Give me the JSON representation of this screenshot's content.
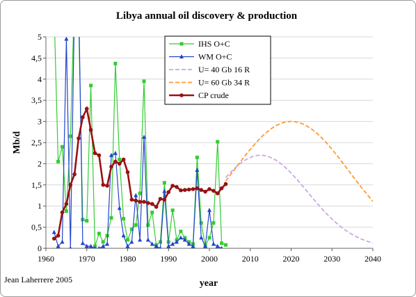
{
  "chart_data": {
    "type": "line",
    "title": "Libya annual oil discovery & production",
    "xlabel": "year",
    "ylabel": "Mb/d",
    "xlim": [
      1960,
      2040
    ],
    "ylim": [
      0,
      5
    ],
    "xticks": [
      1960,
      1970,
      1980,
      1990,
      2000,
      2010,
      2020,
      2030,
      2040
    ],
    "yticks": [
      "0",
      "0,5",
      "1",
      "1,5",
      "2",
      "2,5",
      "3",
      "3,5",
      "4",
      "4,5",
      "5"
    ],
    "yticks_values": [
      0,
      0.5,
      1,
      1.5,
      2,
      2.5,
      3,
      3.5,
      4,
      4.5,
      5
    ],
    "grid": "horizontal",
    "legend_position": "top-center",
    "annotation": "Jean Laherrere 2005",
    "series": [
      {
        "name": "IHS  O+C",
        "color": "#33cc33",
        "marker": "square",
        "style": "solid",
        "points": [
          [
            1962,
            5.6
          ],
          [
            1963,
            2.05
          ],
          [
            1964,
            2.4
          ],
          [
            1965,
            0.88
          ],
          [
            1966,
            2.65
          ],
          [
            1967,
            6.0
          ],
          [
            1968,
            5.5
          ],
          [
            1969,
            0.68
          ],
          [
            1970,
            0.65
          ],
          [
            1971,
            3.85
          ],
          [
            1972,
            0.05
          ],
          [
            1973,
            0.35
          ],
          [
            1974,
            0.15
          ],
          [
            1975,
            0.3
          ],
          [
            1976,
            0.72
          ],
          [
            1977,
            4.37
          ],
          [
            1978,
            2.1
          ],
          [
            1979,
            0.7
          ],
          [
            1980,
            0.2
          ],
          [
            1981,
            0.45
          ],
          [
            1982,
            0.55
          ],
          [
            1983,
            1.3
          ],
          [
            1984,
            3.95
          ],
          [
            1985,
            0.55
          ],
          [
            1986,
            0.85
          ],
          [
            1987,
            0.08
          ],
          [
            1988,
            0.15
          ],
          [
            1989,
            1.55
          ],
          [
            1990,
            0.15
          ],
          [
            1991,
            0.9
          ],
          [
            1992,
            0.2
          ],
          [
            1993,
            0.4
          ],
          [
            1994,
            0.25
          ],
          [
            1995,
            0.15
          ],
          [
            1996,
            0.1
          ],
          [
            1997,
            2.15
          ],
          [
            1998,
            0.6
          ],
          [
            1999,
            0.05
          ],
          [
            2000,
            0.25
          ],
          [
            2001,
            0.6
          ],
          [
            2002,
            2.52
          ],
          [
            2003,
            0.12
          ],
          [
            2004,
            0.08
          ]
        ]
      },
      {
        "name": "WM O+C",
        "color": "#2244cc",
        "marker": "triangle",
        "style": "solid",
        "points": [
          [
            1962,
            0.38
          ],
          [
            1963,
            0.05
          ],
          [
            1964,
            0.15
          ],
          [
            1965,
            4.95
          ],
          [
            1966,
            0.0
          ],
          [
            1967,
            5.8
          ],
          [
            1968,
            6.0
          ],
          [
            1969,
            0.12
          ],
          [
            1970,
            0.05
          ],
          [
            1971,
            0.05
          ],
          [
            1972,
            0.0
          ],
          [
            1973,
            0.0
          ],
          [
            1974,
            0.05
          ],
          [
            1975,
            0.1
          ],
          [
            1976,
            2.2
          ],
          [
            1977,
            2.25
          ],
          [
            1978,
            0.95
          ],
          [
            1979,
            0.3
          ],
          [
            1980,
            0.05
          ],
          [
            1981,
            0.15
          ],
          [
            1982,
            1.25
          ],
          [
            1983,
            0.2
          ],
          [
            1984,
            2.63
          ],
          [
            1985,
            0.2
          ],
          [
            1986,
            0.1
          ],
          [
            1987,
            0.05
          ],
          [
            1988,
            0.0
          ],
          [
            1989,
            1.35
          ],
          [
            1990,
            0.05
          ],
          [
            1991,
            0.1
          ],
          [
            1992,
            0.15
          ],
          [
            1993,
            0.25
          ],
          [
            1994,
            0.2
          ],
          [
            1995,
            0.1
          ],
          [
            1996,
            0.05
          ],
          [
            1997,
            1.85
          ],
          [
            1998,
            0.25
          ],
          [
            1999,
            0.05
          ],
          [
            2000,
            0.9
          ],
          [
            2001,
            0.1
          ],
          [
            2002,
            0.05
          ],
          [
            2003,
            0.0
          ]
        ]
      },
      {
        "name": "U= 40 Gb 16 R",
        "color": "#c9a8e6",
        "marker": "none",
        "style": "dashed",
        "peak_year": 2012.5,
        "peak_value": 2.2,
        "sigma": 11.5,
        "start_year": 2004
      },
      {
        "name": "U= 60 Gb 34 R",
        "color": "#ff9933",
        "marker": "none",
        "style": "dashed",
        "peak_year": 2020,
        "peak_value": 3.0,
        "sigma": 14.2,
        "start_year": 2004
      },
      {
        "name": "CP crude",
        "color": "#991111",
        "marker": "circle",
        "style": "solid",
        "points": [
          [
            1962,
            0.23
          ],
          [
            1963,
            0.3
          ],
          [
            1964,
            0.85
          ],
          [
            1965,
            1.05
          ],
          [
            1966,
            1.5
          ],
          [
            1967,
            1.75
          ],
          [
            1968,
            2.6
          ],
          [
            1969,
            3.1
          ],
          [
            1970,
            3.3
          ],
          [
            1971,
            2.8
          ],
          [
            1972,
            2.25
          ],
          [
            1973,
            2.2
          ],
          [
            1974,
            1.5
          ],
          [
            1975,
            1.48
          ],
          [
            1976,
            1.93
          ],
          [
            1977,
            2.05
          ],
          [
            1978,
            2.0
          ],
          [
            1979,
            2.1
          ],
          [
            1980,
            1.8
          ],
          [
            1981,
            1.15
          ],
          [
            1982,
            1.13
          ],
          [
            1983,
            1.1
          ],
          [
            1984,
            1.1
          ],
          [
            1985,
            1.07
          ],
          [
            1986,
            1.05
          ],
          [
            1987,
            0.98
          ],
          [
            1988,
            1.17
          ],
          [
            1989,
            1.15
          ],
          [
            1990,
            1.33
          ],
          [
            1991,
            1.48
          ],
          [
            1992,
            1.45
          ],
          [
            1993,
            1.37
          ],
          [
            1994,
            1.38
          ],
          [
            1995,
            1.39
          ],
          [
            1996,
            1.4
          ],
          [
            1997,
            1.42
          ],
          [
            1998,
            1.38
          ],
          [
            1999,
            1.34
          ],
          [
            2000,
            1.4
          ],
          [
            2001,
            1.36
          ],
          [
            2002,
            1.3
          ],
          [
            2003,
            1.42
          ],
          [
            2004,
            1.52
          ]
        ]
      }
    ]
  }
}
